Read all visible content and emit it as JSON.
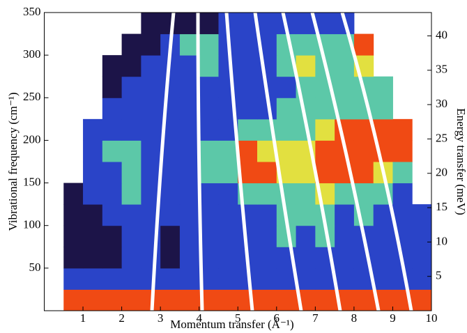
{
  "chart_data": {
    "type": "heatmap",
    "xlabel": "Momentum transfer (Å⁻¹)",
    "ylabel": "Vibrational frequency (cm⁻¹)",
    "y2label": "Energy transfer (meV)",
    "xlim": [
      0,
      10
    ],
    "ylim": [
      0,
      350
    ],
    "y2lim": [
      0,
      43.4
    ],
    "xticks": [
      1,
      2,
      3,
      4,
      5,
      6,
      7,
      8,
      9,
      10
    ],
    "yticks": [
      50,
      100,
      150,
      200,
      250,
      300,
      350
    ],
    "y2ticks": [
      5,
      10,
      15,
      20,
      25,
      30,
      35,
      40
    ],
    "x": [
      0.25,
      0.75,
      1.25,
      1.75,
      2.25,
      2.75,
      3.25,
      3.75,
      4.25,
      4.75,
      5.25,
      5.75,
      6.25,
      6.75,
      7.25,
      7.75,
      8.25,
      8.75,
      9.25,
      9.75
    ],
    "y": [
      12.5,
      37.5,
      62.5,
      87.5,
      112.5,
      137.5,
      162.5,
      187.5,
      212.5,
      237.5,
      262.5,
      287.5,
      312.5,
      337.5
    ],
    "colors": [
      "#1c1448",
      "#2a44c8",
      "#5cc8a8",
      "#e2e040",
      "#f04a14"
    ],
    "z": [
      [
        null,
        4,
        4,
        4,
        4,
        4,
        4,
        4,
        4,
        4,
        4,
        4,
        4,
        4,
        4,
        4,
        4,
        4,
        4,
        4
      ],
      [
        null,
        1,
        1,
        1,
        1,
        1,
        1,
        1,
        1,
        1,
        1,
        1,
        1,
        1,
        1,
        1,
        1,
        1,
        1,
        1
      ],
      [
        null,
        0,
        0,
        0,
        1,
        1,
        0,
        1,
        1,
        1,
        1,
        1,
        1,
        1,
        1,
        1,
        1,
        1,
        1,
        1
      ],
      [
        null,
        0,
        0,
        0,
        1,
        1,
        0,
        1,
        1,
        1,
        1,
        1,
        2,
        1,
        2,
        1,
        1,
        1,
        1,
        1
      ],
      [
        null,
        0,
        0,
        1,
        1,
        1,
        1,
        1,
        1,
        1,
        1,
        1,
        2,
        2,
        2,
        1,
        2,
        1,
        1,
        1
      ],
      [
        null,
        0,
        1,
        1,
        2,
        1,
        1,
        1,
        1,
        1,
        2,
        2,
        2,
        2,
        3,
        2,
        2,
        2,
        1,
        null
      ],
      [
        null,
        null,
        1,
        1,
        2,
        1,
        1,
        1,
        2,
        2,
        4,
        4,
        3,
        3,
        4,
        4,
        4,
        3,
        2,
        null
      ],
      [
        null,
        null,
        1,
        2,
        2,
        1,
        1,
        1,
        2,
        2,
        4,
        3,
        3,
        3,
        4,
        4,
        4,
        4,
        4,
        null
      ],
      [
        null,
        null,
        1,
        1,
        1,
        1,
        1,
        1,
        1,
        1,
        2,
        2,
        2,
        2,
        3,
        4,
        4,
        4,
        4,
        null
      ],
      [
        null,
        null,
        null,
        1,
        1,
        1,
        1,
        1,
        1,
        1,
        1,
        1,
        2,
        2,
        2,
        2,
        2,
        2,
        null,
        null
      ],
      [
        null,
        null,
        null,
        0,
        1,
        1,
        1,
        1,
        1,
        1,
        1,
        1,
        1,
        2,
        2,
        2,
        2,
        2,
        null,
        null
      ],
      [
        null,
        null,
        null,
        0,
        0,
        1,
        1,
        1,
        2,
        1,
        1,
        1,
        2,
        3,
        2,
        2,
        3,
        null,
        null,
        null
      ],
      [
        null,
        null,
        null,
        null,
        0,
        0,
        1,
        2,
        2,
        1,
        1,
        1,
        2,
        2,
        2,
        2,
        4,
        null,
        null,
        null
      ],
      [
        null,
        null,
        null,
        null,
        null,
        0,
        0,
        0,
        0,
        1,
        1,
        1,
        1,
        1,
        1,
        1,
        null,
        null,
        null,
        null
      ]
    ]
  }
}
